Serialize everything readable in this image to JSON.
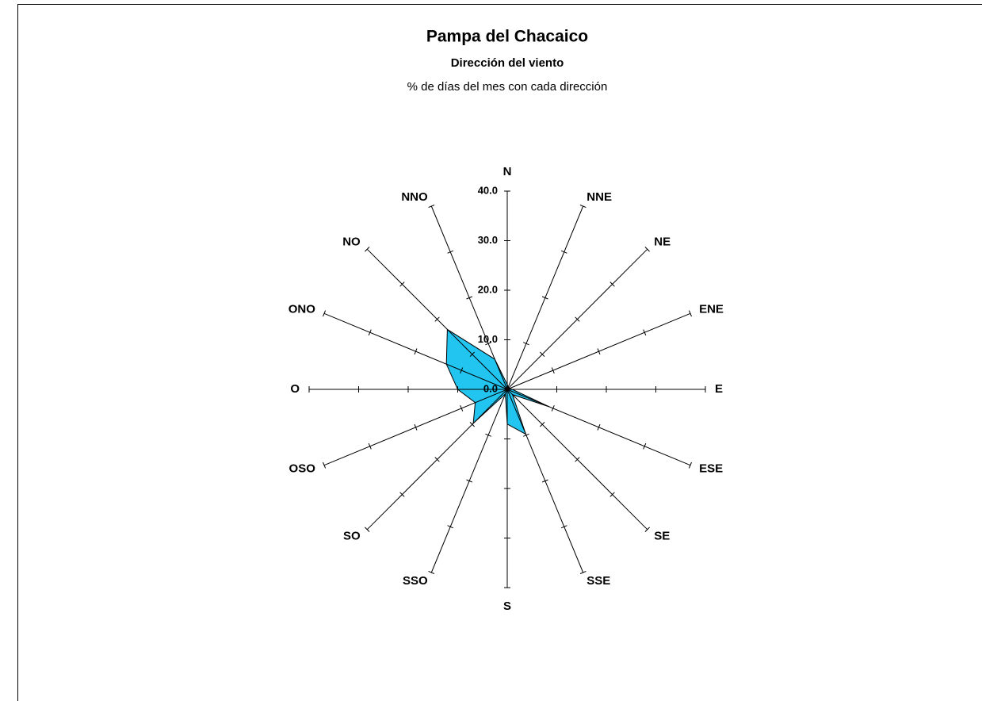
{
  "chart_data": {
    "type": "radar",
    "title": "Pampa del Chacaico",
    "subtitle": "Dirección del viento",
    "caption": "% de días del mes con cada dirección",
    "categories": [
      "N",
      "NNE",
      "NE",
      "ENE",
      "E",
      "ESE",
      "SE",
      "SSE",
      "S",
      "SSO",
      "SO",
      "OSO",
      "O",
      "ONO",
      "NO",
      "NNO"
    ],
    "values": [
      1,
      0.5,
      0.5,
      0.5,
      1,
      9.2,
      1.5,
      9.8,
      7,
      1,
      9.7,
      7,
      10,
      13.3,
      17.1,
      6.6
    ],
    "color": "#22c4f0",
    "ylim": [
      0,
      40
    ],
    "yticks": [
      {
        "value": 0,
        "label": "0.0"
      },
      {
        "value": 10,
        "label": "10.0"
      },
      {
        "value": 20,
        "label": "20.0"
      },
      {
        "value": 30,
        "label": "30.0"
      },
      {
        "value": 40,
        "label": "40.0"
      }
    ]
  }
}
